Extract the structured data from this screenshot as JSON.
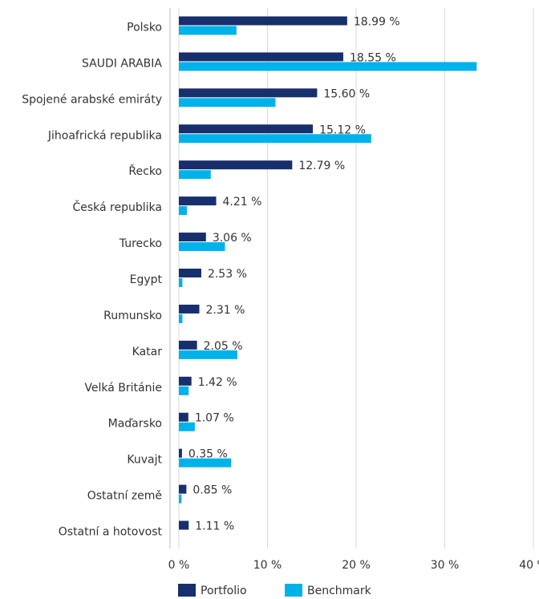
{
  "chart_data": {
    "type": "hbar",
    "categories": [
      "Polsko",
      "SAUDI ARABIA",
      "Spojené arabské emiráty",
      "Jihoafrická republika",
      "Řecko",
      "Česká republika",
      "Turecko",
      "Egypt",
      "Rumunsko",
      "Katar",
      "Velká Británie",
      "Maďarsko",
      "Kuvajt",
      "Ostatní země",
      "Ostatní a hotovost"
    ],
    "series": [
      {
        "name": "Portfolio",
        "color": "#172f6c",
        "values": [
          18.99,
          18.55,
          15.6,
          15.12,
          12.79,
          4.21,
          3.06,
          2.53,
          2.31,
          2.05,
          1.42,
          1.07,
          0.35,
          0.85,
          1.11
        ],
        "value_labels": [
          "18.99 %",
          "18.55 %",
          "15.60 %",
          "15.12 %",
          "12.79 %",
          "4.21 %",
          "3.06 %",
          "2.53 %",
          "2.31 %",
          "2.05 %",
          "1.42 %",
          "1.07 %",
          "0.35 %",
          "0.85 %",
          "1.11 %"
        ]
      },
      {
        "name": "Benchmark",
        "color": "#00b2ea",
        "values": [
          6.5,
          33.6,
          10.9,
          21.7,
          3.6,
          0.9,
          5.2,
          0.4,
          0.4,
          6.6,
          1.1,
          1.8,
          5.9,
          0.3,
          null
        ]
      }
    ],
    "xlim": [
      0,
      40
    ],
    "xticks": [
      {
        "value": 0,
        "label": "0 %"
      },
      {
        "value": 10,
        "label": "10 %"
      },
      {
        "value": 20,
        "label": "20 %"
      },
      {
        "value": 30,
        "label": "30 %"
      },
      {
        "value": 40,
        "label": "40 %"
      }
    ],
    "grid": true,
    "legend": "bottom"
  }
}
